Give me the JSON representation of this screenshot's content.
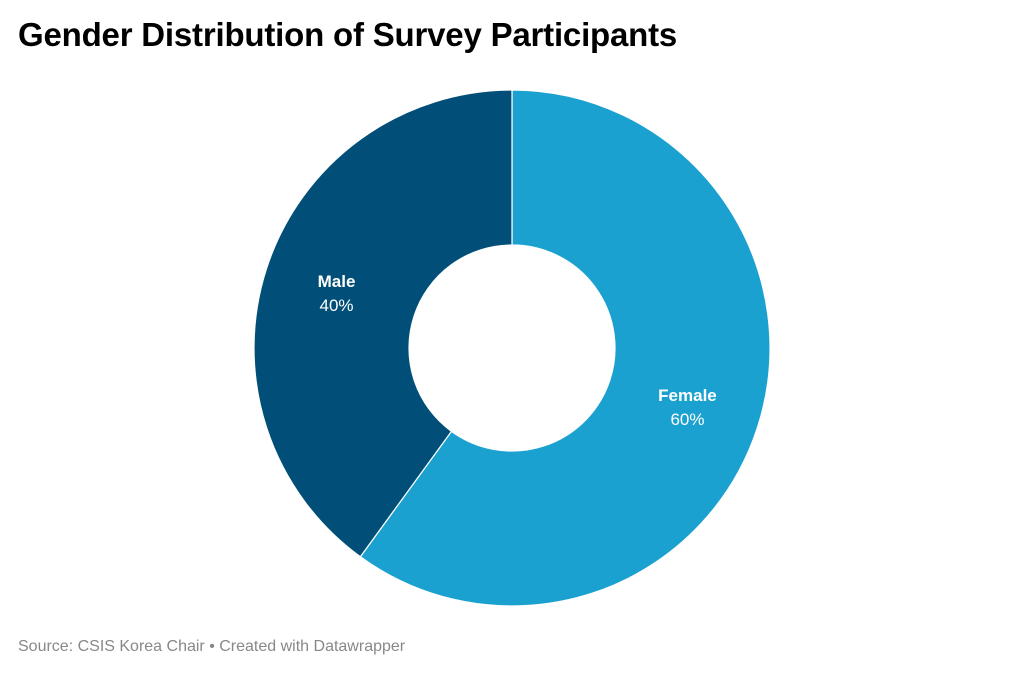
{
  "chart_data": {
    "type": "pie",
    "variant": "donut",
    "title": "Gender Distribution of Survey Participants",
    "slices": [
      {
        "label": "Female",
        "value": 60,
        "value_label": "60%",
        "color": "#1ba1d0"
      },
      {
        "label": "Male",
        "value": 40,
        "value_label": "40%",
        "color": "#014f78"
      }
    ],
    "start": "12 o'clock",
    "direction": "clockwise",
    "separator_color": "#ffffff"
  },
  "footer": {
    "source": "Source: CSIS Korea Chair • Created with Datawrapper"
  }
}
